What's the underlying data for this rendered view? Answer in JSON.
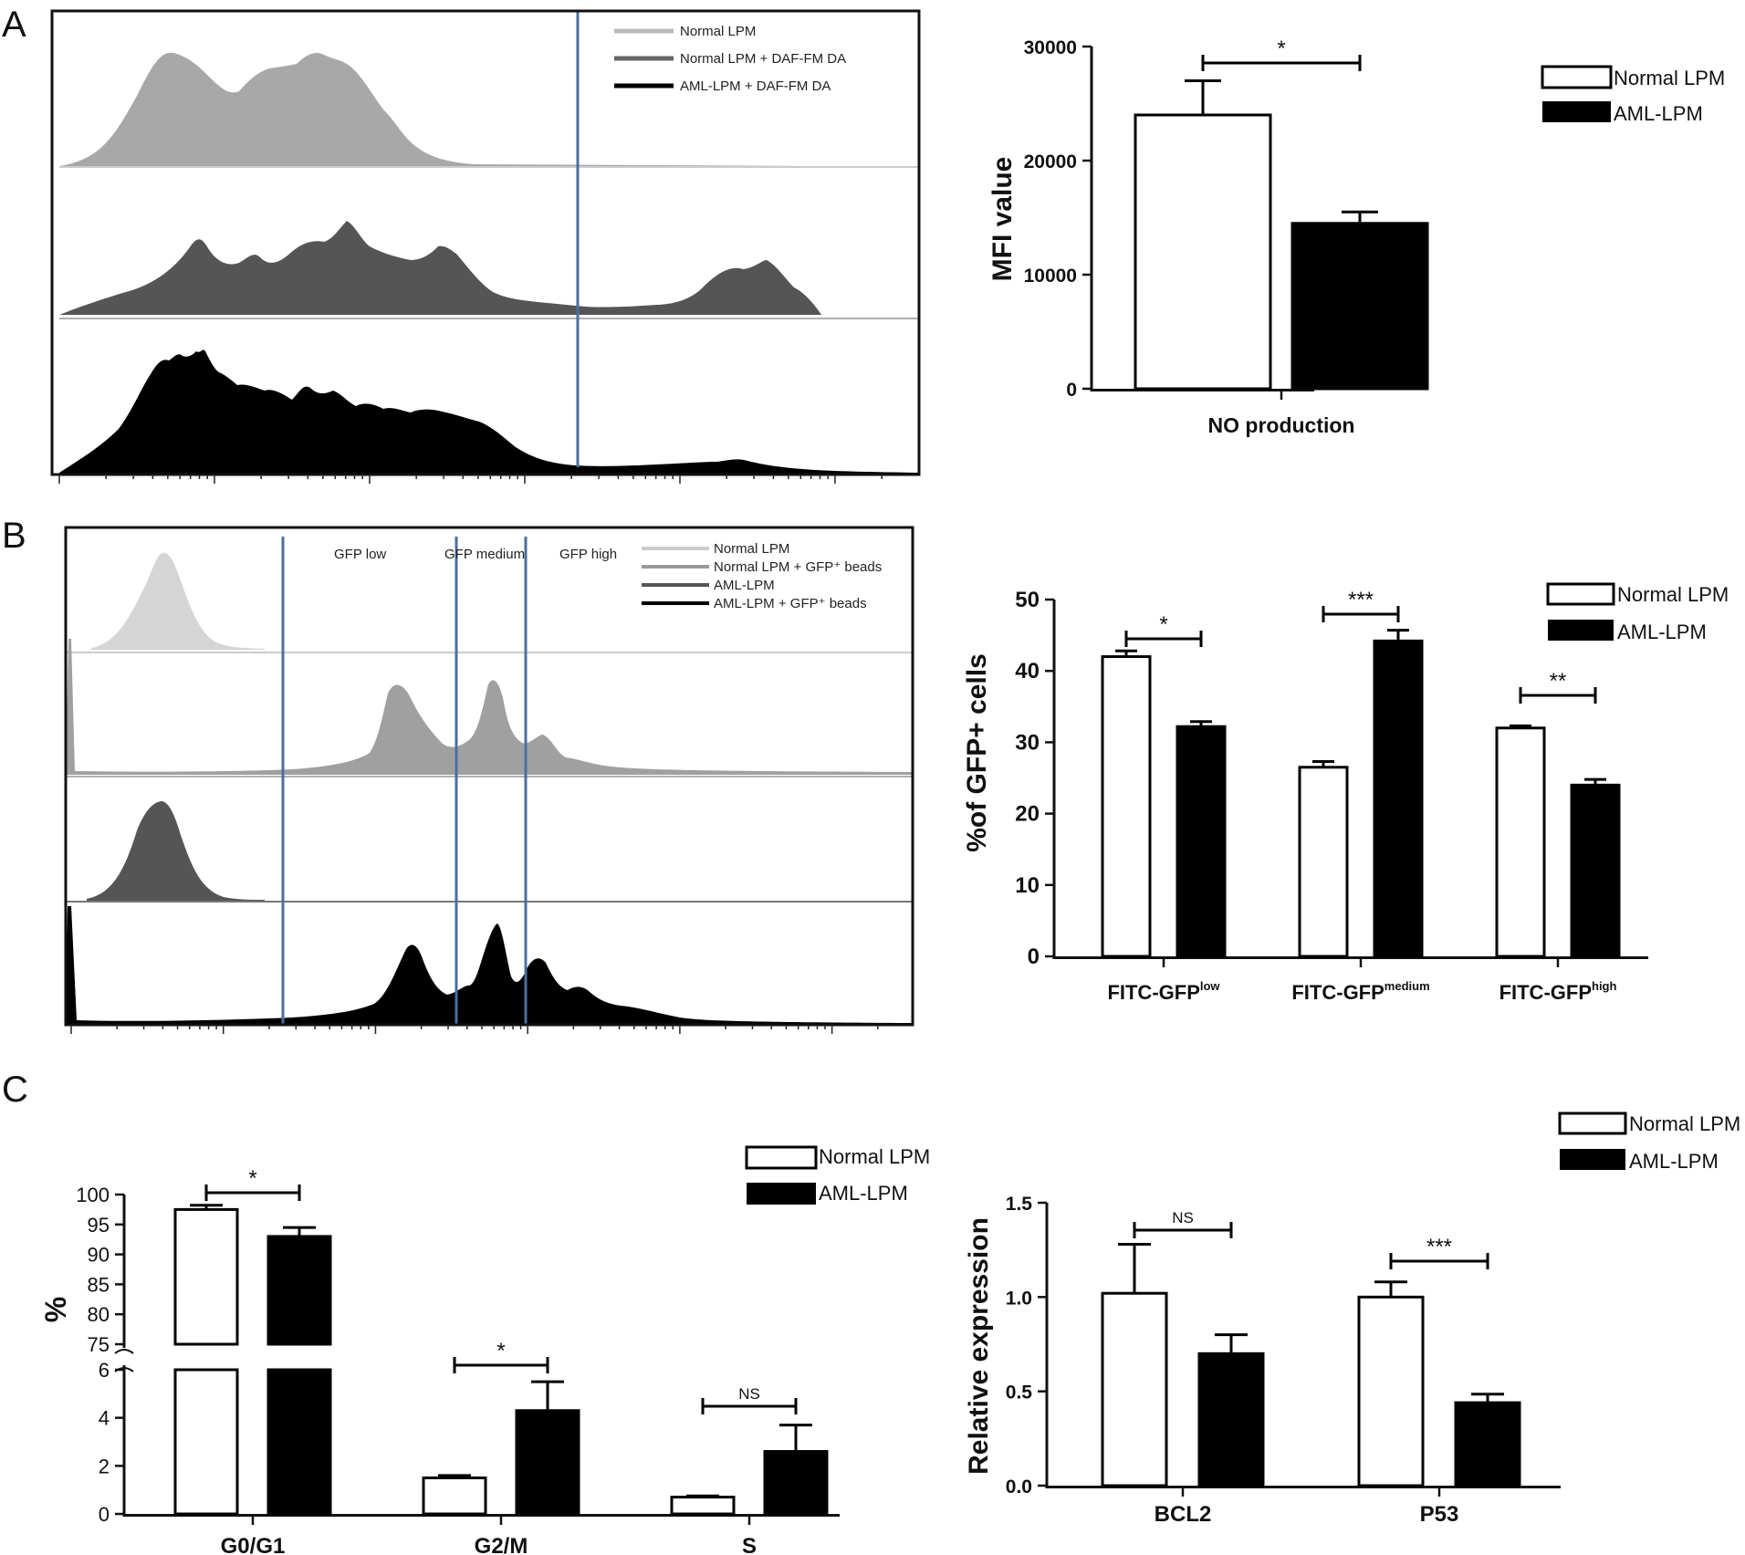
{
  "panels": {
    "A": {
      "label": "A",
      "histogram_legend": [
        "Normal LPM",
        "Normal LPM + DAF-FM DA",
        "AML-LPM + DAF-FM DA"
      ],
      "histogram_colors": [
        "#a8a8a8",
        "#555555",
        "#000000"
      ]
    },
    "B": {
      "label": "B",
      "gates": [
        "GFP low",
        "GFP medium",
        "GFP high"
      ],
      "histogram_legend": [
        "Normal LPM",
        "Normal LPM + GFP⁺ beads",
        "AML-LPM",
        "AML-LPM + GFP⁺ beads"
      ],
      "histogram_colors": [
        "#d0d0d0",
        "#a0a0a0",
        "#555555",
        "#000000"
      ]
    },
    "C": {
      "label": "C"
    }
  },
  "legend": {
    "normal": "Normal LPM",
    "aml": "AML-LPM"
  },
  "colors": {
    "normal_fill": "#ffffff",
    "aml_fill": "#000000",
    "gate_line": "#4a6fa0"
  },
  "chart_data": [
    {
      "id": "A-bar",
      "type": "bar",
      "categories": [
        "NO production"
      ],
      "series": [
        {
          "name": "Normal LPM",
          "values": [
            24000
          ],
          "errors": [
            3000
          ]
        },
        {
          "name": "AML-LPM",
          "values": [
            14500
          ],
          "errors": [
            1000
          ]
        }
      ],
      "ylabel": "MFI value",
      "ylim": [
        0,
        30000
      ],
      "yticks": [
        "0",
        "10000",
        "20000",
        "30000"
      ],
      "significance": [
        "*"
      ]
    },
    {
      "id": "B-bar",
      "type": "bar",
      "categories": [
        "FITC-GFP",
        "FITC-GFP",
        "FITC-GFP"
      ],
      "category_superscripts": [
        "low",
        "medium",
        "high"
      ],
      "series": [
        {
          "name": "Normal LPM",
          "values": [
            42,
            26.5,
            32
          ],
          "errors": [
            0.8,
            0.8,
            0.3
          ]
        },
        {
          "name": "AML-LPM",
          "values": [
            32.2,
            44.2,
            24
          ],
          "errors": [
            0.7,
            1.5,
            0.8
          ]
        }
      ],
      "ylabel": "%of GFP+ cells",
      "ylim": [
        0,
        50
      ],
      "yticks": [
        "0",
        "10",
        "20",
        "30",
        "40",
        "50"
      ],
      "significance": [
        "*",
        "***",
        "**"
      ]
    },
    {
      "id": "C-cellcycle",
      "type": "bar",
      "categories": [
        "G0/G1",
        "G2/M",
        "S"
      ],
      "series": [
        {
          "name": "Normal LPM",
          "values": [
            97.5,
            1.5,
            0.7
          ],
          "errors": [
            0.7,
            0.1,
            0.05
          ]
        },
        {
          "name": "AML-LPM",
          "values": [
            93,
            4.3,
            2.6
          ],
          "errors": [
            1.5,
            1.2,
            1.1
          ]
        }
      ],
      "ylabel": "%",
      "ylim_lower": [
        0,
        6
      ],
      "ylim_upper": [
        75,
        100
      ],
      "yticks_lower": [
        "0",
        "2",
        "4",
        "6"
      ],
      "yticks_upper": [
        "75",
        "80",
        "85",
        "90",
        "95",
        "100"
      ],
      "significance": [
        "*",
        "*",
        "NS"
      ]
    },
    {
      "id": "C-expression",
      "type": "bar",
      "categories": [
        "BCL2",
        "P53"
      ],
      "series": [
        {
          "name": "Normal LPM",
          "values": [
            1.02,
            1.0
          ],
          "errors": [
            0.26,
            0.08
          ]
        },
        {
          "name": "AML-LPM",
          "values": [
            0.7,
            0.44
          ],
          "errors": [
            0.1,
            0.045
          ]
        }
      ],
      "ylabel": "Relative expression",
      "ylim": [
        0,
        1.5
      ],
      "yticks": [
        "0.0",
        "0.5",
        "1.0",
        "1.5"
      ],
      "significance": [
        "NS",
        "***"
      ]
    }
  ]
}
